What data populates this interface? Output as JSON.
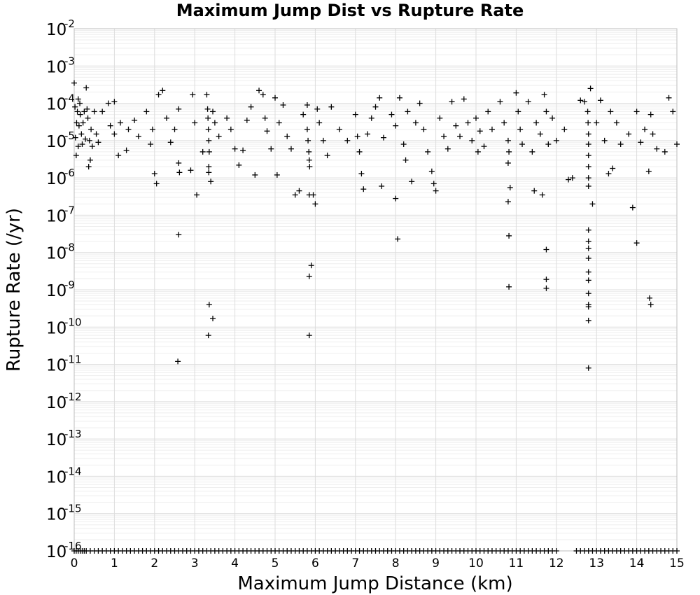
{
  "chart_data": {
    "type": "scatter",
    "title": "Maximum Jump Dist vs Rupture Rate",
    "xlabel": "Maximum Jump Distance (km)",
    "ylabel": "Rupture Rate (/yr)",
    "xlim": [
      0,
      15
    ],
    "ylim_log10": [
      -16,
      -2
    ],
    "yscale": "log",
    "grid": true,
    "marker": "+",
    "marker_color": "#000000",
    "x_ticks": [
      "0",
      "1",
      "2",
      "3",
      "4",
      "5",
      "6",
      "7",
      "8",
      "9",
      "10",
      "11",
      "12",
      "13",
      "14",
      "15"
    ],
    "y_ticks": [
      {
        "base": "10",
        "exp": "-2"
      },
      {
        "base": "10",
        "exp": "-3"
      },
      {
        "base": "10",
        "exp": "-4"
      },
      {
        "base": "10",
        "exp": "-5"
      },
      {
        "base": "10",
        "exp": "-6"
      },
      {
        "base": "10",
        "exp": "-7"
      },
      {
        "base": "10",
        "exp": "-8"
      },
      {
        "base": "10",
        "exp": "-9"
      },
      {
        "base": "10",
        "exp": "-10"
      },
      {
        "base": "10",
        "exp": "-11"
      },
      {
        "base": "10",
        "exp": "-12"
      },
      {
        "base": "10",
        "exp": "-13"
      },
      {
        "base": "10",
        "exp": "-14"
      },
      {
        "base": "10",
        "exp": "-15"
      },
      {
        "base": "10",
        "exp": "-16"
      }
    ],
    "points": [
      [
        0.0,
        0.00035
      ],
      [
        0.02,
        8e-05
      ],
      [
        0.03,
        1.2e-05
      ],
      [
        0.05,
        4e-06
      ],
      [
        0.06,
        3e-05
      ],
      [
        0.08,
        6e-05
      ],
      [
        0.1,
        0.00013
      ],
      [
        0.1,
        7e-06
      ],
      [
        0.12,
        2.5e-05
      ],
      [
        0.14,
        0.0001
      ],
      [
        0.15,
        5e-05
      ],
      [
        0.18,
        1.5e-05
      ],
      [
        0.2,
        8e-06
      ],
      [
        0.22,
        3e-05
      ],
      [
        0.25,
        6e-05
      ],
      [
        0.28,
        1.1e-05
      ],
      [
        0.3,
        0.00026
      ],
      [
        0.32,
        7e-05
      ],
      [
        0.34,
        4e-05
      ],
      [
        0.36,
        2e-06
      ],
      [
        0.38,
        1e-05
      ],
      [
        0.4,
        3e-06
      ],
      [
        0.42,
        2e-05
      ],
      [
        0.45,
        7e-06
      ],
      [
        0.5,
        6e-05
      ],
      [
        0.55,
        1.5e-05
      ],
      [
        0.6,
        9e-06
      ],
      [
        0.7,
        6e-05
      ],
      [
        0.85,
        0.0001
      ],
      [
        0.9,
        2.5e-05
      ],
      [
        1.0,
        0.00011
      ],
      [
        1.0,
        1.5e-05
      ],
      [
        1.1,
        4e-06
      ],
      [
        1.15,
        3e-05
      ],
      [
        1.3,
        5.5e-06
      ],
      [
        1.35,
        2e-05
      ],
      [
        1.5,
        3.5e-05
      ],
      [
        1.6,
        1.3e-05
      ],
      [
        1.8,
        6e-05
      ],
      [
        1.9,
        8e-06
      ],
      [
        1.95,
        2e-05
      ],
      [
        2.0,
        1.3e-06
      ],
      [
        2.05,
        7e-07
      ],
      [
        2.1,
        0.00017
      ],
      [
        2.2,
        0.00022
      ],
      [
        2.3,
        4e-05
      ],
      [
        2.4,
        9e-06
      ],
      [
        2.5,
        2e-05
      ],
      [
        2.6,
        7e-05
      ],
      [
        2.6,
        2.5e-06
      ],
      [
        2.62,
        1.4e-06
      ],
      [
        2.6,
        3e-08
      ],
      [
        2.58,
        1.2e-11
      ],
      [
        2.9,
        1.6e-06
      ],
      [
        2.95,
        0.00017
      ],
      [
        3.0,
        3e-05
      ],
      [
        3.05,
        3.5e-07
      ],
      [
        3.2,
        5e-06
      ],
      [
        3.3,
        0.00017
      ],
      [
        3.32,
        7e-05
      ],
      [
        3.33,
        4e-05
      ],
      [
        3.34,
        2e-05
      ],
      [
        3.35,
        1e-05
      ],
      [
        3.36,
        5e-06
      ],
      [
        3.35,
        2e-06
      ],
      [
        3.35,
        1.4e-06
      ],
      [
        3.36,
        4e-10
      ],
      [
        3.34,
        6e-11
      ],
      [
        3.45,
        1.7e-10
      ],
      [
        3.4,
        8e-07
      ],
      [
        3.45,
        6e-05
      ],
      [
        3.5,
        3e-05
      ],
      [
        3.6,
        1.3e-05
      ],
      [
        3.8,
        4e-05
      ],
      [
        3.9,
        2e-05
      ],
      [
        4.0,
        6e-06
      ],
      [
        4.1,
        2.2e-06
      ],
      [
        4.2,
        5.5e-06
      ],
      [
        4.3,
        3.5e-05
      ],
      [
        4.4,
        8e-05
      ],
      [
        4.5,
        1.2e-06
      ],
      [
        4.6,
        0.00022
      ],
      [
        4.7,
        0.00017
      ],
      [
        4.75,
        4e-05
      ],
      [
        4.8,
        1.8e-05
      ],
      [
        4.9,
        6e-06
      ],
      [
        5.0,
        0.00014
      ],
      [
        5.05,
        1.2e-06
      ],
      [
        5.1,
        3e-05
      ],
      [
        5.2,
        9e-05
      ],
      [
        5.3,
        1.3e-05
      ],
      [
        5.4,
        6e-06
      ],
      [
        5.5,
        3.5e-07
      ],
      [
        5.6,
        4.5e-07
      ],
      [
        5.7,
        5e-05
      ],
      [
        5.8,
        9e-05
      ],
      [
        5.8,
        2e-05
      ],
      [
        5.82,
        1e-05
      ],
      [
        5.84,
        5e-06
      ],
      [
        5.85,
        3e-06
      ],
      [
        5.86,
        2e-06
      ],
      [
        5.85,
        3.5e-07
      ],
      [
        5.85,
        2.3e-09
      ],
      [
        5.85,
        6e-11
      ],
      [
        5.9,
        4.5e-09
      ],
      [
        5.95,
        3.5e-07
      ],
      [
        6.0,
        2e-07
      ],
      [
        6.05,
        7e-05
      ],
      [
        6.1,
        3e-05
      ],
      [
        6.2,
        1e-05
      ],
      [
        6.3,
        4e-06
      ],
      [
        6.4,
        8e-05
      ],
      [
        6.6,
        2e-05
      ],
      [
        6.8,
        1e-05
      ],
      [
        7.0,
        5e-05
      ],
      [
        7.05,
        1.3e-05
      ],
      [
        7.1,
        5e-06
      ],
      [
        7.15,
        1.3e-06
      ],
      [
        7.2,
        5e-07
      ],
      [
        7.3,
        1.5e-05
      ],
      [
        7.4,
        4e-05
      ],
      [
        7.5,
        8e-05
      ],
      [
        7.6,
        0.00014
      ],
      [
        7.65,
        6e-07
      ],
      [
        7.7,
        1.2e-05
      ],
      [
        7.9,
        5e-05
      ],
      [
        8.0,
        2.5e-05
      ],
      [
        8.0,
        2.8e-07
      ],
      [
        8.05,
        2.3e-08
      ],
      [
        8.1,
        0.00014
      ],
      [
        8.2,
        8e-06
      ],
      [
        8.25,
        3e-06
      ],
      [
        8.3,
        6e-05
      ],
      [
        8.4,
        8e-07
      ],
      [
        8.5,
        3e-05
      ],
      [
        8.6,
        0.0001
      ],
      [
        8.7,
        2e-05
      ],
      [
        8.8,
        5e-06
      ],
      [
        8.9,
        1.5e-06
      ],
      [
        8.95,
        7e-07
      ],
      [
        9.0,
        4.5e-07
      ],
      [
        9.1,
        4e-05
      ],
      [
        9.2,
        1.3e-05
      ],
      [
        9.3,
        6e-06
      ],
      [
        9.4,
        0.00011
      ],
      [
        9.5,
        2.5e-05
      ],
      [
        9.6,
        1.3e-05
      ],
      [
        9.7,
        0.00013
      ],
      [
        9.8,
        3e-05
      ],
      [
        9.9,
        1e-05
      ],
      [
        10.0,
        4e-05
      ],
      [
        10.05,
        5e-06
      ],
      [
        10.1,
        1.8e-05
      ],
      [
        10.2,
        7e-06
      ],
      [
        10.3,
        6e-05
      ],
      [
        10.4,
        2e-05
      ],
      [
        10.6,
        0.00011
      ],
      [
        10.7,
        3e-05
      ],
      [
        10.8,
        1e-05
      ],
      [
        10.82,
        5e-06
      ],
      [
        10.8,
        2.5e-06
      ],
      [
        10.8,
        2.3e-07
      ],
      [
        10.82,
        2.8e-08
      ],
      [
        10.82,
        1.2e-09
      ],
      [
        10.85,
        5.5e-07
      ],
      [
        11.0,
        0.00019
      ],
      [
        11.05,
        6e-05
      ],
      [
        11.1,
        2e-05
      ],
      [
        11.15,
        8e-06
      ],
      [
        11.3,
        0.00011
      ],
      [
        11.4,
        5e-06
      ],
      [
        11.45,
        4.5e-07
      ],
      [
        11.5,
        3e-05
      ],
      [
        11.6,
        1.5e-05
      ],
      [
        11.65,
        3.5e-07
      ],
      [
        11.7,
        0.00017
      ],
      [
        11.75,
        6e-05
      ],
      [
        11.75,
        1.2e-08
      ],
      [
        11.75,
        1.9e-09
      ],
      [
        11.75,
        1.1e-09
      ],
      [
        11.8,
        8e-06
      ],
      [
        11.9,
        4e-05
      ],
      [
        12.0,
        1e-05
      ],
      [
        12.2,
        2e-05
      ],
      [
        12.3,
        9e-07
      ],
      [
        12.4,
        1e-06
      ],
      [
        12.6,
        0.00012
      ],
      [
        12.7,
        0.00011
      ],
      [
        12.78,
        6e-05
      ],
      [
        12.79,
        3e-05
      ],
      [
        12.8,
        1.5e-05
      ],
      [
        12.8,
        8e-06
      ],
      [
        12.8,
        4e-06
      ],
      [
        12.8,
        2e-06
      ],
      [
        12.8,
        1e-06
      ],
      [
        12.8,
        6e-07
      ],
      [
        12.8,
        4e-08
      ],
      [
        12.8,
        2e-08
      ],
      [
        12.8,
        1.3e-08
      ],
      [
        12.8,
        7e-09
      ],
      [
        12.8,
        3e-09
      ],
      [
        12.8,
        1.8e-09
      ],
      [
        12.8,
        8e-10
      ],
      [
        12.8,
        4e-10
      ],
      [
        12.8,
        3.5e-10
      ],
      [
        12.8,
        1.5e-10
      ],
      [
        12.8,
        8e-12
      ],
      [
        12.85,
        0.00025
      ],
      [
        12.9,
        2e-07
      ],
      [
        13.0,
        3e-05
      ],
      [
        13.1,
        0.00012
      ],
      [
        13.2,
        1e-05
      ],
      [
        13.3,
        1.3e-06
      ],
      [
        13.35,
        6e-05
      ],
      [
        13.4,
        1.8e-06
      ],
      [
        13.5,
        3e-05
      ],
      [
        13.6,
        8e-06
      ],
      [
        13.8,
        1.5e-05
      ],
      [
        13.9,
        1.6e-07
      ],
      [
        14.0,
        1.8e-08
      ],
      [
        14.0,
        6e-05
      ],
      [
        14.1,
        9e-06
      ],
      [
        14.2,
        2e-05
      ],
      [
        14.3,
        1.5e-06
      ],
      [
        14.32,
        6e-10
      ],
      [
        14.35,
        4e-10
      ],
      [
        14.35,
        5e-05
      ],
      [
        14.4,
        1.5e-05
      ],
      [
        14.5,
        6e-06
      ],
      [
        14.7,
        5e-06
      ],
      [
        14.8,
        0.00014
      ],
      [
        14.9,
        6e-05
      ],
      [
        15.0,
        8e-06
      ]
    ],
    "floor_points_x": [
      0.0,
      0.05,
      0.1,
      0.15,
      0.2,
      0.25,
      0.3,
      0.4,
      0.5,
      0.6,
      0.7,
      0.8,
      0.9,
      1.0,
      1.1,
      1.2,
      1.3,
      1.4,
      1.5,
      1.6,
      1.7,
      1.8,
      1.9,
      2.0,
      2.1,
      2.2,
      2.3,
      2.4,
      2.5,
      2.6,
      2.7,
      2.8,
      2.9,
      3.0,
      3.1,
      3.2,
      3.3,
      3.4,
      3.5,
      3.6,
      3.7,
      3.8,
      3.9,
      4.0,
      4.1,
      4.2,
      4.3,
      4.4,
      4.5,
      4.6,
      4.7,
      4.8,
      4.9,
      5.0,
      5.1,
      5.2,
      5.3,
      5.4,
      5.5,
      5.6,
      5.7,
      5.8,
      5.9,
      6.0,
      6.1,
      6.2,
      6.3,
      6.4,
      6.5,
      6.6,
      6.7,
      6.8,
      6.9,
      7.0,
      7.1,
      7.2,
      7.3,
      7.4,
      7.5,
      7.6,
      7.7,
      7.8,
      7.9,
      8.0,
      8.1,
      8.2,
      8.3,
      8.4,
      8.5,
      8.6,
      8.7,
      8.8,
      8.9,
      9.0,
      9.1,
      9.2,
      9.3,
      9.4,
      9.5,
      9.6,
      9.7,
      9.8,
      9.9,
      10.0,
      10.1,
      10.2,
      10.3,
      10.4,
      10.5,
      10.6,
      10.7,
      10.8,
      10.9,
      11.0,
      11.1,
      11.2,
      11.3,
      11.4,
      11.5,
      11.6,
      11.7,
      11.8,
      11.9,
      12.0,
      12.5,
      12.6,
      12.7,
      12.8,
      12.9,
      13.0,
      13.1,
      13.2,
      13.3,
      13.4,
      13.5,
      13.6,
      13.7,
      13.8,
      13.9,
      14.0,
      14.1,
      14.2,
      14.3,
      14.4,
      14.5,
      14.6,
      14.7,
      14.8,
      14.9,
      15.0
    ],
    "floor_value": 1e-16
  }
}
